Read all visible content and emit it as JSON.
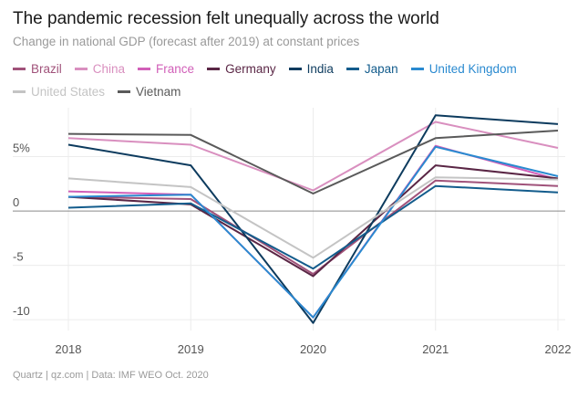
{
  "title": "The pandemic recession felt unequally across the world",
  "subtitle": "Change in national GDP (forecast after 2019) at constant prices",
  "source": "Quartz | qz.com | Data: IMF WEO Oct. 2020",
  "chart_data": {
    "type": "line",
    "title": "The pandemic recession felt unequally across the world",
    "subtitle": "Change in national GDP (forecast after 2019) at constant prices",
    "xlabel": "",
    "ylabel": "",
    "x": [
      "2018",
      "2019",
      "2020",
      "2021",
      "2022"
    ],
    "ylim": [
      -11,
      9.5
    ],
    "yticks": [
      {
        "value": 5,
        "label": "5%"
      },
      {
        "value": 0,
        "label": "0"
      },
      {
        "value": -5,
        "label": "-5"
      },
      {
        "value": -10,
        "label": "-10"
      }
    ],
    "series": [
      {
        "name": "Brazil",
        "color": "#a0527a",
        "values": [
          1.3,
          1.1,
          -5.8,
          2.8,
          2.3
        ]
      },
      {
        "name": "China",
        "color": "#d98fbf",
        "values": [
          6.7,
          6.1,
          1.9,
          8.2,
          5.8
        ]
      },
      {
        "name": "France",
        "color": "#d15fb8",
        "values": [
          1.8,
          1.5,
          -9.8,
          6.0,
          2.9
        ]
      },
      {
        "name": "Germany",
        "color": "#5a2645",
        "values": [
          1.3,
          0.6,
          -6.0,
          4.2,
          3.0
        ]
      },
      {
        "name": "India",
        "color": "#0d3b5e",
        "values": [
          6.1,
          4.2,
          -10.3,
          8.8,
          8.0
        ]
      },
      {
        "name": "Japan",
        "color": "#135c8c",
        "values": [
          0.3,
          0.7,
          -5.3,
          2.3,
          1.7
        ]
      },
      {
        "name": "United Kingdom",
        "color": "#2a8ad0",
        "values": [
          1.3,
          1.5,
          -9.8,
          5.9,
          3.2
        ]
      },
      {
        "name": "United States",
        "color": "#c4c4c4",
        "values": [
          3.0,
          2.2,
          -4.3,
          3.1,
          2.9
        ]
      },
      {
        "name": "Vietnam",
        "color": "#5a5a5a",
        "values": [
          7.1,
          7.0,
          1.6,
          6.7,
          7.4
        ]
      }
    ]
  }
}
